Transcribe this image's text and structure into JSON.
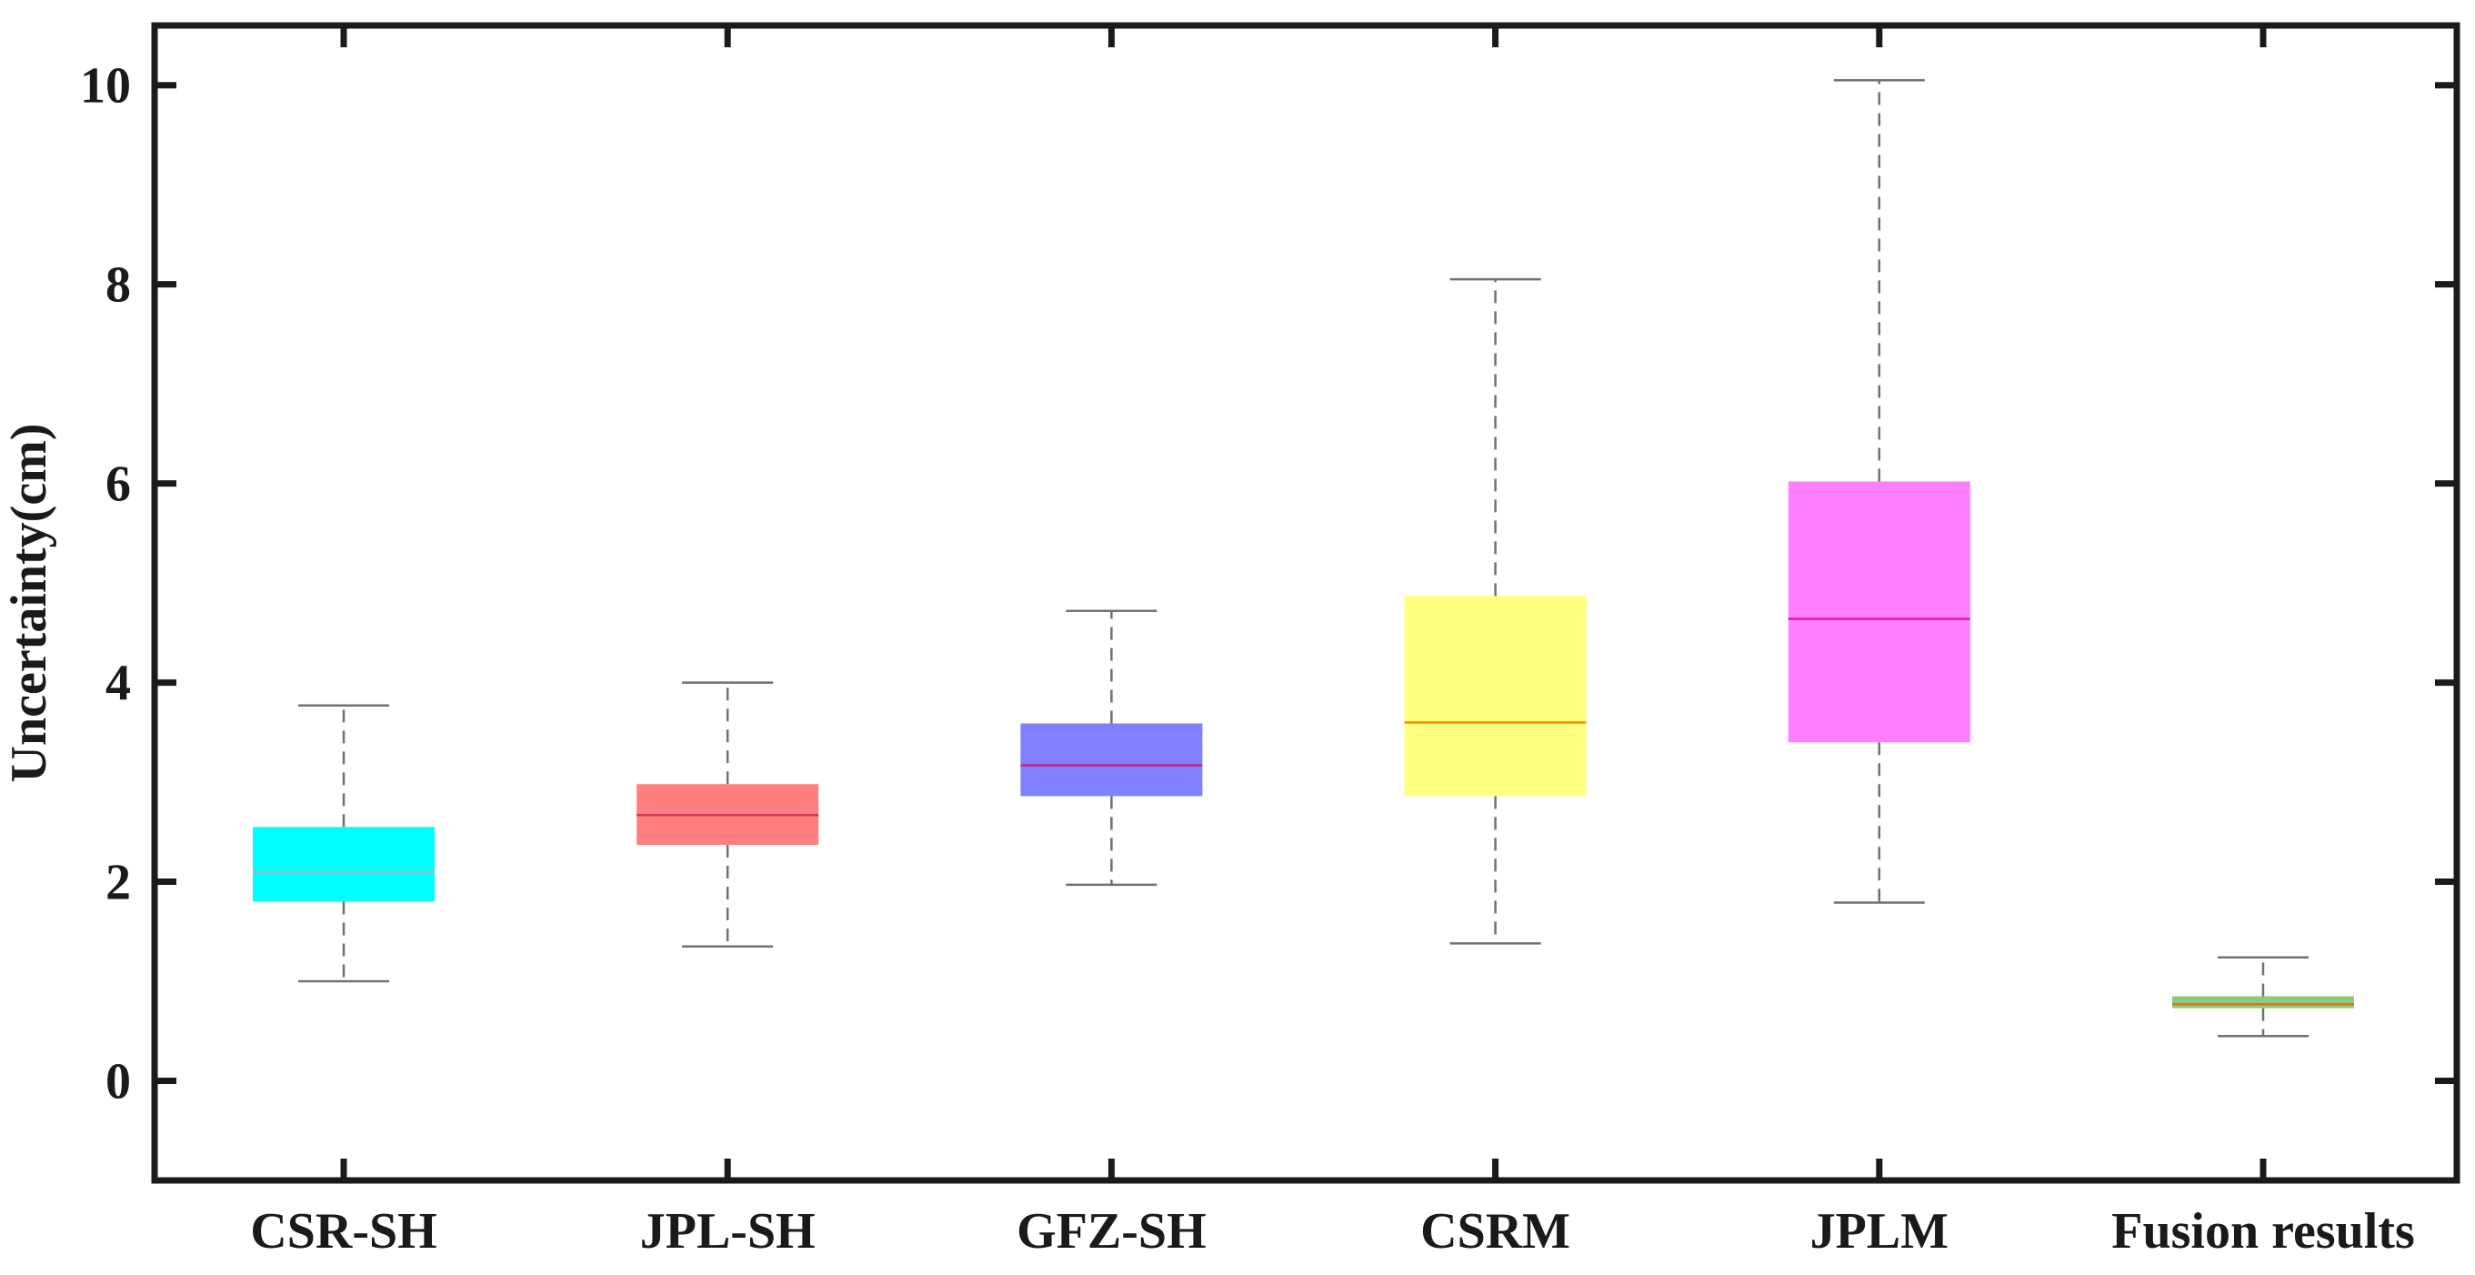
{
  "chart_data": {
    "type": "box",
    "title": "",
    "xlabel": "",
    "ylabel": "Uncertainty(cm)",
    "ylim": [
      -1,
      10.6
    ],
    "yticks": [
      0,
      2,
      4,
      6,
      8,
      10
    ],
    "grid": false,
    "categories": [
      "CSR-SH",
      "JPL-SH",
      "GFZ-SH",
      "CSRM",
      "JPLM",
      "Fusion results"
    ],
    "boxes": [
      {
        "name": "CSR-SH",
        "whisker_low": 1.0,
        "q1": 1.8,
        "median": 2.1,
        "q3": 2.55,
        "whisker_high": 3.77,
        "color": "#00ffff",
        "median_color": "#8fbfbf"
      },
      {
        "name": "JPL-SH",
        "whisker_low": 1.35,
        "q1": 2.37,
        "median": 2.67,
        "q3": 2.98,
        "whisker_high": 4.0,
        "color": "#ff7f7f",
        "median_color": "#d9344d"
      },
      {
        "name": "GFZ-SH",
        "whisker_low": 1.97,
        "q1": 2.86,
        "median": 3.17,
        "q3": 3.59,
        "whisker_high": 4.72,
        "color": "#8080ff",
        "median_color": "#c0287a"
      },
      {
        "name": "CSRM",
        "whisker_low": 1.38,
        "q1": 2.86,
        "median": 3.6,
        "q3": 4.87,
        "whisker_high": 8.05,
        "color": "#ffff80",
        "median_color": "#ff8c00"
      },
      {
        "name": "JPLM",
        "whisker_low": 1.79,
        "q1": 3.4,
        "median": 4.64,
        "q3": 6.02,
        "whisker_high": 10.05,
        "color": "#ff80ff",
        "median_color": "#e6189c"
      },
      {
        "name": "Fusion results",
        "whisker_low": 0.45,
        "q1": 0.73,
        "median": 0.77,
        "q3": 0.85,
        "whisker_high": 1.24,
        "color": "#8fca78",
        "median_color": "#e07020"
      }
    ],
    "colors": {
      "axis": "#1a1a1a",
      "whisker": "#707070"
    }
  }
}
